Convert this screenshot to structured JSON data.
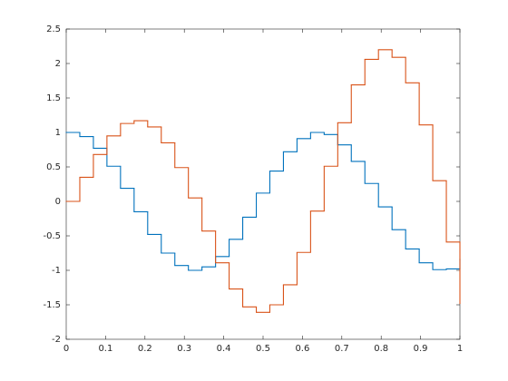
{
  "chart_data": {
    "type": "stairs",
    "x": [
      0,
      0.0345,
      0.069,
      0.1034,
      0.1379,
      0.1724,
      0.2069,
      0.2414,
      0.2759,
      0.3103,
      0.3448,
      0.3793,
      0.4138,
      0.4483,
      0.4828,
      0.5172,
      0.5517,
      0.5862,
      0.6207,
      0.6552,
      0.6897,
      0.7241,
      0.7586,
      0.7931,
      0.8276,
      0.8621,
      0.8966,
      0.931,
      0.9655,
      1
    ],
    "series": [
      {
        "color": "#0072BD",
        "values": [
          1,
          0.94,
          0.77,
          0.51,
          0.19,
          -0.15,
          -0.48,
          -0.75,
          -0.93,
          -1.0,
          -0.95,
          -0.8,
          -0.55,
          -0.23,
          0.12,
          0.44,
          0.72,
          0.91,
          1.0,
          0.97,
          0.82,
          0.58,
          0.26,
          -0.08,
          -0.41,
          -0.69,
          -0.89,
          -0.99,
          -0.98,
          -0.84
        ]
      },
      {
        "color": "#D95319",
        "values": [
          0,
          0.35,
          0.68,
          0.95,
          1.13,
          1.17,
          1.08,
          0.85,
          0.49,
          0.05,
          -0.43,
          -0.89,
          -1.27,
          -1.53,
          -1.61,
          -1.5,
          -1.21,
          -0.74,
          -0.14,
          0.51,
          1.14,
          1.69,
          2.06,
          2.2,
          2.09,
          1.72,
          1.11,
          0.3,
          -0.59,
          -1.48
        ]
      }
    ],
    "xlim": [
      0,
      1
    ],
    "xticks": [
      0,
      0.1,
      0.2,
      0.3,
      0.4,
      0.5,
      0.6,
      0.7,
      0.8,
      0.9,
      1
    ],
    "ylim": [
      -2,
      2.5
    ],
    "yticks": [
      -2,
      -1.5,
      -1,
      -0.5,
      0,
      0.5,
      1,
      1.5,
      2,
      2.5
    ]
  }
}
